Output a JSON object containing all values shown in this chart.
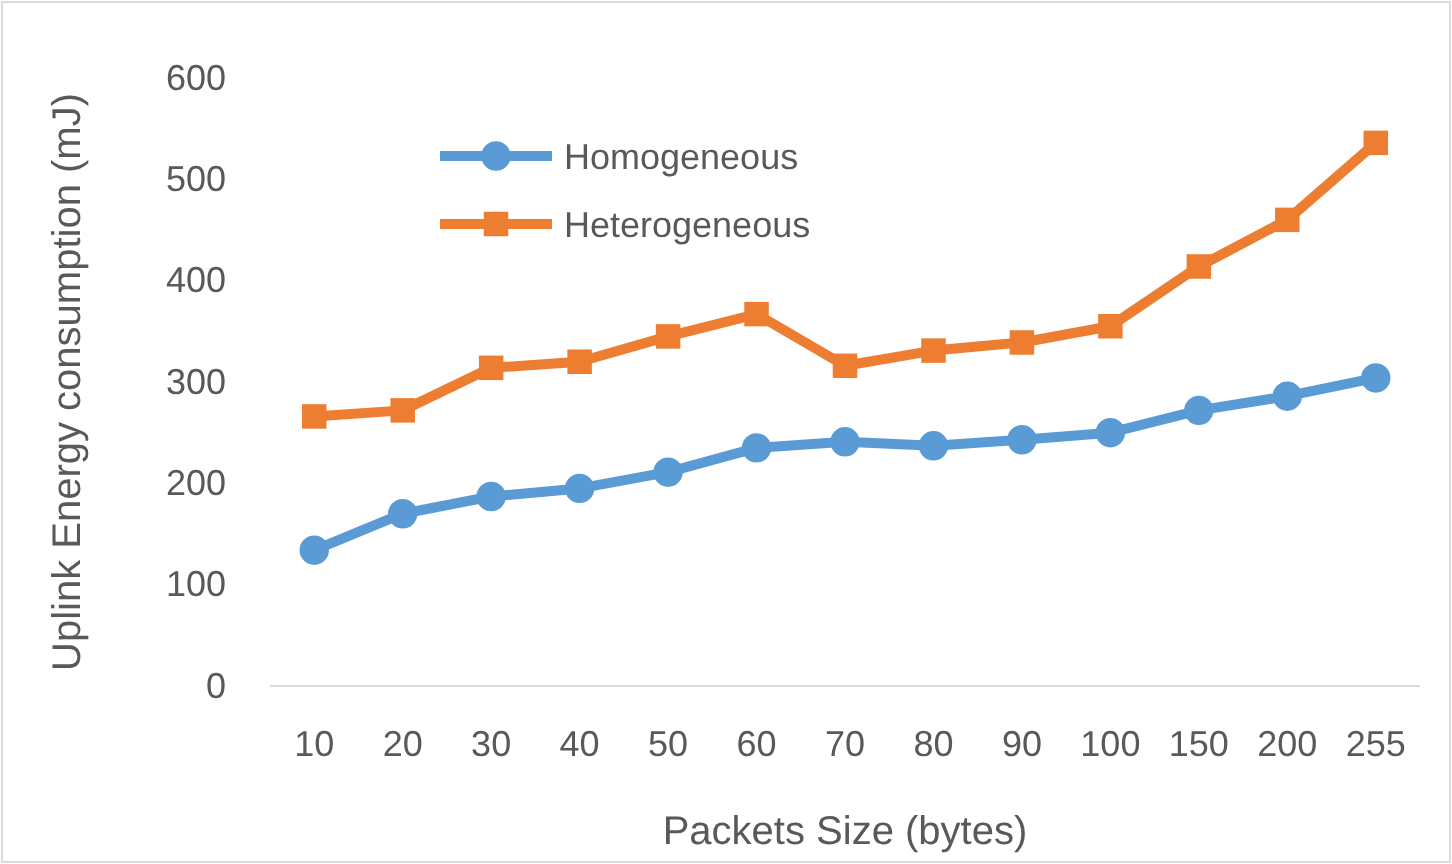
{
  "chart_data": {
    "type": "line",
    "xlabel": "Packets Size (bytes)",
    "ylabel": "Uplink Energy consumption (mJ)",
    "categories": [
      "10",
      "20",
      "30",
      "40",
      "50",
      "60",
      "70",
      "80",
      "90",
      "100",
      "150",
      "200",
      "255"
    ],
    "ylim": [
      0,
      600
    ],
    "yticks": [
      0,
      100,
      200,
      300,
      400,
      500,
      600
    ],
    "grid": false,
    "legend": "top left",
    "line_style": "solid",
    "series": [
      {
        "name": "Homogeneous",
        "color": "#5b9bd5",
        "marker": "circle",
        "values": [
          134,
          170,
          187,
          195,
          211,
          235,
          241,
          237,
          243,
          250,
          272,
          286,
          304
        ]
      },
      {
        "name": "Heterogeneous",
        "color": "#ed7d31",
        "marker": "square",
        "values": [
          266,
          272,
          314,
          320,
          345,
          367,
          316,
          331,
          339,
          355,
          414,
          460,
          536
        ]
      }
    ]
  }
}
